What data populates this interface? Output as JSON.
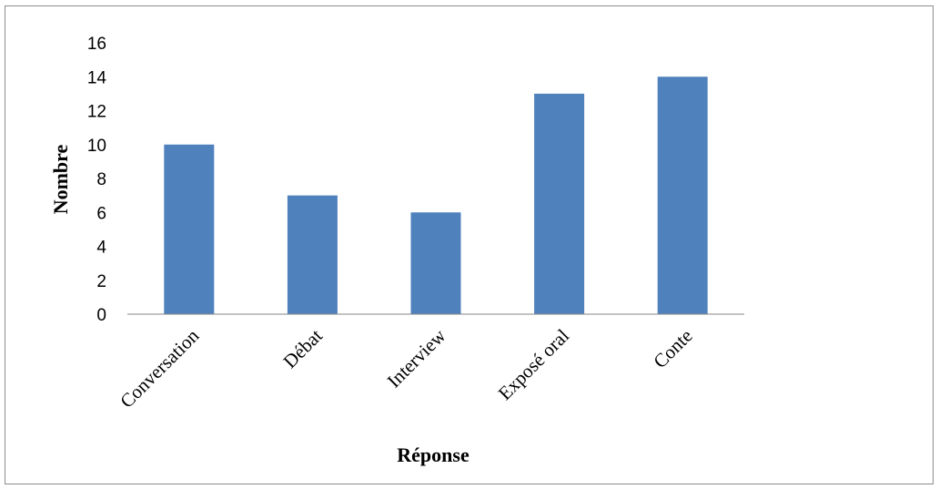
{
  "chart_data": {
    "type": "bar",
    "categories": [
      "Conversation",
      "Débat",
      "Interview",
      "Exposé oral",
      "Conte"
    ],
    "values": [
      10,
      7,
      6,
      13,
      14
    ],
    "title": "",
    "xlabel": "Réponse",
    "ylabel": "Nombre",
    "ylim": [
      0,
      16
    ],
    "yticks": [
      0,
      2,
      4,
      6,
      8,
      10,
      12,
      14,
      16
    ],
    "grid": false,
    "legend": "none",
    "bar_color": "#4F81BD",
    "axis_color": "#868686"
  }
}
